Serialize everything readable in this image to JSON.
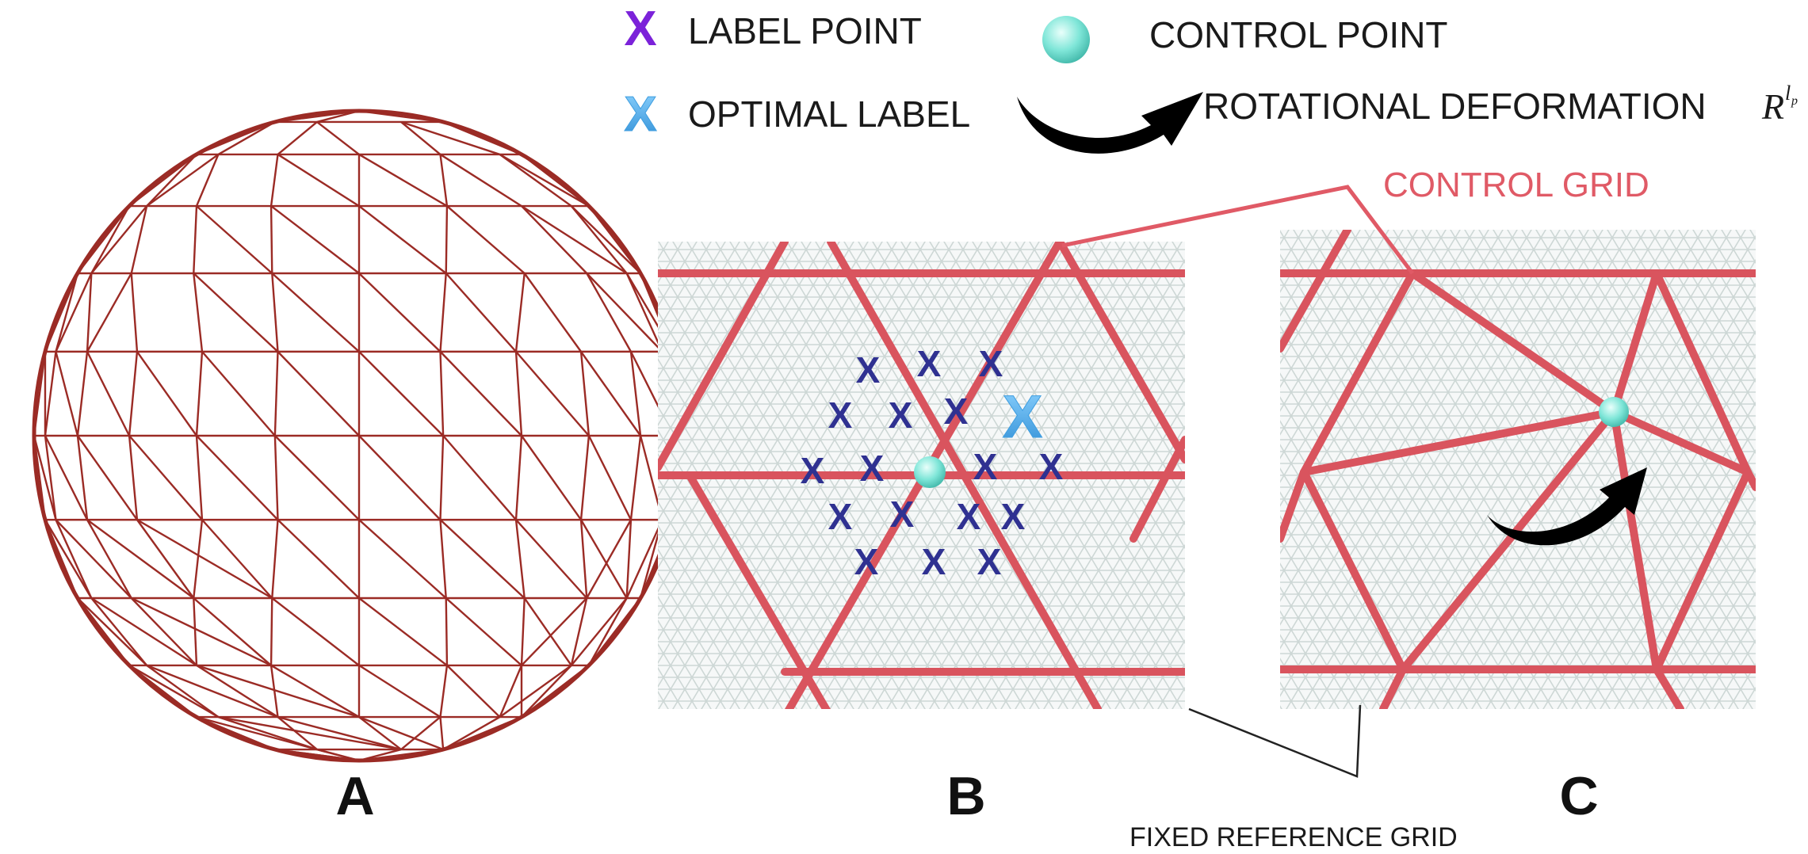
{
  "legend": {
    "label_point": "LABEL POINT",
    "optimal_label": "OPTIMAL LABEL",
    "control_point": "CONTROL POINT",
    "rotational_deformation": "ROTATIONAL DEFORMATION",
    "symbol_base": "R",
    "symbol_sup_main": "l",
    "symbol_sup_sub": "p",
    "label_marker": "X",
    "optimal_marker": "X"
  },
  "annotations": {
    "control_grid": "CONTROL GRID",
    "fixed_reference_grid": "FIXED REFERENCE GRID"
  },
  "panels": {
    "a": "A",
    "b": "B",
    "c": "C"
  },
  "colors": {
    "sphere_mesh": "#9b2b25",
    "control_grid": "#d9545e",
    "control_grid_label": "#e05a66",
    "reference_grid": "#c6d1cf",
    "label_point": "#7b22d9",
    "label_point_panel": "#2f3191",
    "optimal_label": "#5ab4f0",
    "control_point": "#7fe6d8",
    "arrow": "#000000"
  },
  "panel_b_labels": "X"
}
